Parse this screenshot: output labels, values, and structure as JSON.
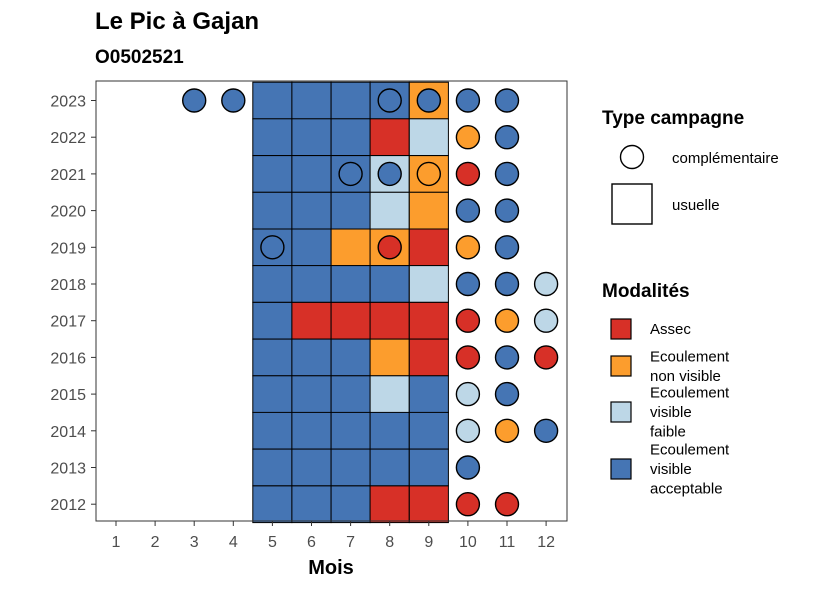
{
  "chart_data": {
    "type": "heatmap",
    "title": "Le Pic à Gajan",
    "subtitle": "O0502521",
    "xlabel": "Mois",
    "ylabel": "",
    "x_ticks": [
      "1",
      "2",
      "3",
      "4",
      "5",
      "6",
      "7",
      "8",
      "9",
      "10",
      "11",
      "12"
    ],
    "y_ticks": [
      "2023",
      "2022",
      "2021",
      "2020",
      "2019",
      "2018",
      "2017",
      "2016",
      "2015",
      "2014",
      "2013",
      "2012"
    ],
    "legend_type": {
      "title": "Type campagne",
      "items": [
        {
          "shape": "circle",
          "label": "complémentaire"
        },
        {
          "shape": "square",
          "label": "usuelle"
        }
      ]
    },
    "legend_modalites": {
      "title": "Modalités",
      "items": [
        {
          "key": "A",
          "lines": [
            "Assec"
          ],
          "color": "#d73027"
        },
        {
          "key": "NV",
          "lines": [
            "Ecoulement",
            "non visible"
          ],
          "color": "#fc9d2d"
        },
        {
          "key": "VF",
          "lines": [
            "Ecoulement",
            "visible",
            "faible"
          ],
          "color": "#bdd7e7"
        },
        {
          "key": "VA",
          "lines": [
            "Ecoulement",
            "visible",
            "acceptable"
          ],
          "color": "#4575b4"
        }
      ]
    },
    "squares": [
      {
        "year": "2023",
        "months": {
          "5": "VA",
          "6": "VA",
          "7": "VA",
          "8": "VA",
          "9": "NV"
        }
      },
      {
        "year": "2022",
        "months": {
          "5": "VA",
          "6": "VA",
          "7": "VA",
          "8": "A",
          "9": "VF"
        }
      },
      {
        "year": "2021",
        "months": {
          "5": "VA",
          "6": "VA",
          "7": "VA",
          "8": "VF",
          "9": "NV"
        }
      },
      {
        "year": "2020",
        "months": {
          "5": "VA",
          "6": "VA",
          "7": "VA",
          "8": "VF",
          "9": "NV"
        }
      },
      {
        "year": "2019",
        "months": {
          "5": "VA",
          "6": "VA",
          "7": "NV",
          "8": "NV",
          "9": "A"
        }
      },
      {
        "year": "2018",
        "months": {
          "5": "VA",
          "6": "VA",
          "7": "VA",
          "8": "VA",
          "9": "VF"
        }
      },
      {
        "year": "2017",
        "months": {
          "5": "VA",
          "6": "A",
          "7": "A",
          "8": "A",
          "9": "A"
        }
      },
      {
        "year": "2016",
        "months": {
          "5": "VA",
          "6": "VA",
          "7": "VA",
          "8": "NV",
          "9": "A"
        }
      },
      {
        "year": "2015",
        "months": {
          "5": "VA",
          "6": "VA",
          "7": "VA",
          "8": "VF",
          "9": "VA"
        }
      },
      {
        "year": "2014",
        "months": {
          "5": "VA",
          "6": "VA",
          "7": "VA",
          "8": "VA",
          "9": "VA"
        }
      },
      {
        "year": "2013",
        "months": {
          "5": "VA",
          "6": "VA",
          "7": "VA",
          "8": "VA",
          "9": "VA"
        }
      },
      {
        "year": "2012",
        "months": {
          "5": "VA",
          "6": "VA",
          "7": "VA",
          "8": "A",
          "9": "A"
        }
      }
    ],
    "circles": [
      {
        "year": "2023",
        "months": {
          "3": "VA",
          "4": "VA",
          "8": "VA",
          "9": "VA",
          "10": "VA",
          "11": "VA"
        }
      },
      {
        "year": "2022",
        "months": {
          "10": "NV",
          "11": "VA"
        }
      },
      {
        "year": "2021",
        "months": {
          "7": "VA",
          "8": "VA",
          "9": "NV",
          "10": "A",
          "11": "VA"
        }
      },
      {
        "year": "2020",
        "months": {
          "10": "VA",
          "11": "VA"
        }
      },
      {
        "year": "2019",
        "months": {
          "5": "VA",
          "8": "A",
          "10": "NV",
          "11": "VA"
        }
      },
      {
        "year": "2018",
        "months": {
          "10": "VA",
          "11": "VA",
          "12": "VF"
        }
      },
      {
        "year": "2017",
        "months": {
          "10": "A",
          "11": "NV",
          "12": "VF"
        }
      },
      {
        "year": "2016",
        "months": {
          "10": "A",
          "11": "VA",
          "12": "A"
        }
      },
      {
        "year": "2015",
        "months": {
          "10": "VF",
          "11": "VA"
        }
      },
      {
        "year": "2014",
        "months": {
          "10": "VF",
          "11": "NV",
          "12": "VA"
        }
      },
      {
        "year": "2013",
        "months": {
          "10": "VA"
        }
      },
      {
        "year": "2012",
        "months": {
          "10": "A",
          "11": "A"
        }
      }
    ],
    "grid": false,
    "legend_position": "right"
  }
}
